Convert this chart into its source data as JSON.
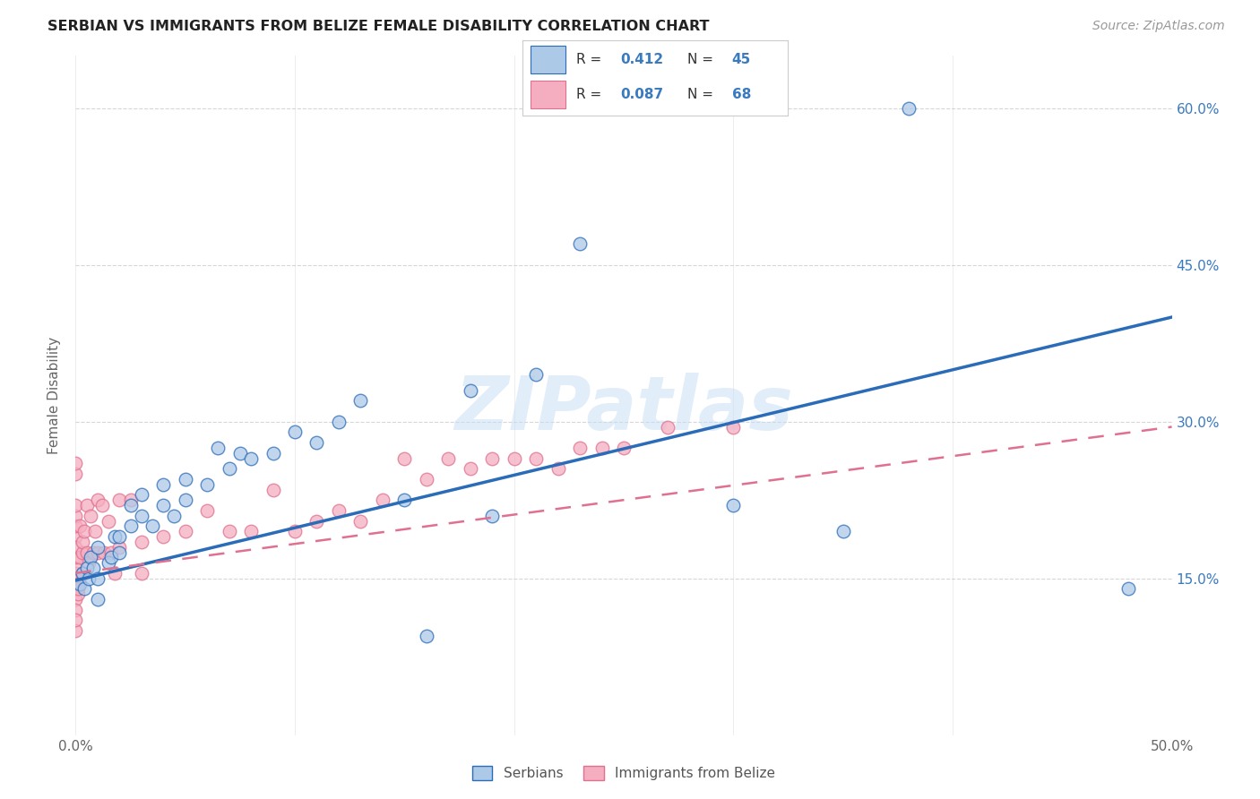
{
  "title": "SERBIAN VS IMMIGRANTS FROM BELIZE FEMALE DISABILITY CORRELATION CHART",
  "source": "Source: ZipAtlas.com",
  "ylabel": "Female Disability",
  "watermark": "ZIPatlas",
  "xlim": [
    0.0,
    0.5
  ],
  "ylim": [
    0.0,
    0.65
  ],
  "xticks": [
    0.0,
    0.1,
    0.2,
    0.3,
    0.4,
    0.5
  ],
  "yticks": [
    0.15,
    0.3,
    0.45,
    0.6
  ],
  "ytick_labels_right": [
    "15.0%",
    "30.0%",
    "45.0%",
    "60.0%"
  ],
  "xtick_labels": [
    "0.0%",
    "",
    "",
    "",
    "",
    "50.0%"
  ],
  "legend1_R": "0.412",
  "legend1_N": "45",
  "legend2_R": "0.087",
  "legend2_N": "68",
  "serbian_color": "#adc9e8",
  "belize_color": "#f5aec0",
  "serbian_line_color": "#2b6cb8",
  "belize_line_color": "#e07090",
  "serbian_x": [
    0.002,
    0.003,
    0.004,
    0.005,
    0.006,
    0.007,
    0.008,
    0.01,
    0.01,
    0.01,
    0.015,
    0.016,
    0.018,
    0.02,
    0.02,
    0.025,
    0.025,
    0.03,
    0.03,
    0.035,
    0.04,
    0.04,
    0.045,
    0.05,
    0.05,
    0.06,
    0.065,
    0.07,
    0.075,
    0.08,
    0.09,
    0.1,
    0.11,
    0.12,
    0.13,
    0.15,
    0.16,
    0.18,
    0.19,
    0.21,
    0.23,
    0.3,
    0.35,
    0.38,
    0.48
  ],
  "serbian_y": [
    0.145,
    0.155,
    0.14,
    0.16,
    0.15,
    0.17,
    0.16,
    0.18,
    0.15,
    0.13,
    0.165,
    0.17,
    0.19,
    0.175,
    0.19,
    0.2,
    0.22,
    0.21,
    0.23,
    0.2,
    0.22,
    0.24,
    0.21,
    0.245,
    0.225,
    0.24,
    0.275,
    0.255,
    0.27,
    0.265,
    0.27,
    0.29,
    0.28,
    0.3,
    0.32,
    0.225,
    0.095,
    0.33,
    0.21,
    0.345,
    0.47,
    0.22,
    0.195,
    0.6,
    0.14
  ],
  "belize_x": [
    0.0,
    0.0,
    0.0,
    0.0,
    0.0,
    0.0,
    0.0,
    0.0,
    0.0,
    0.0,
    0.0,
    0.0,
    0.0,
    0.0,
    0.0,
    0.0,
    0.0,
    0.001,
    0.001,
    0.001,
    0.002,
    0.002,
    0.003,
    0.003,
    0.003,
    0.004,
    0.005,
    0.005,
    0.006,
    0.007,
    0.008,
    0.009,
    0.01,
    0.01,
    0.012,
    0.013,
    0.015,
    0.016,
    0.018,
    0.02,
    0.02,
    0.025,
    0.03,
    0.03,
    0.04,
    0.05,
    0.06,
    0.07,
    0.08,
    0.09,
    0.1,
    0.11,
    0.12,
    0.13,
    0.14,
    0.15,
    0.16,
    0.17,
    0.18,
    0.19,
    0.2,
    0.21,
    0.22,
    0.23,
    0.24,
    0.25,
    0.27,
    0.3
  ],
  "belize_y": [
    0.145,
    0.155,
    0.14,
    0.16,
    0.13,
    0.17,
    0.19,
    0.2,
    0.18,
    0.15,
    0.21,
    0.22,
    0.12,
    0.1,
    0.25,
    0.26,
    0.11,
    0.145,
    0.135,
    0.14,
    0.17,
    0.2,
    0.175,
    0.155,
    0.185,
    0.195,
    0.175,
    0.22,
    0.165,
    0.21,
    0.175,
    0.195,
    0.175,
    0.225,
    0.22,
    0.175,
    0.205,
    0.175,
    0.155,
    0.18,
    0.225,
    0.225,
    0.155,
    0.185,
    0.19,
    0.195,
    0.215,
    0.195,
    0.195,
    0.235,
    0.195,
    0.205,
    0.215,
    0.205,
    0.225,
    0.265,
    0.245,
    0.265,
    0.255,
    0.265,
    0.265,
    0.265,
    0.255,
    0.275,
    0.275,
    0.275,
    0.295,
    0.295
  ]
}
